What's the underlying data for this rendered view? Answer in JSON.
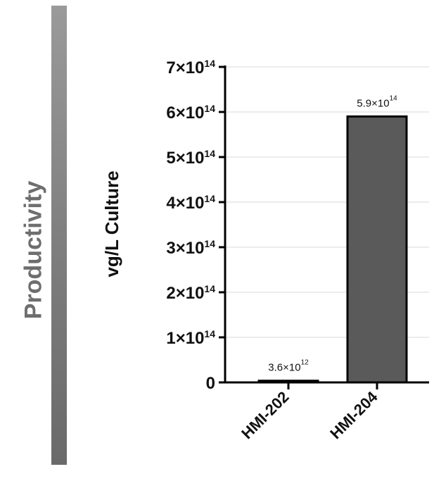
{
  "side_label": "Productivity",
  "chart_data": {
    "type": "bar",
    "categories": [
      "HMI-202",
      "HMI-204"
    ],
    "values": [
      3600000000000.0,
      590000000000000.0
    ],
    "data_labels": [
      {
        "base": "3.6×10",
        "exp": "12"
      },
      {
        "base": "5.9×10",
        "exp": "14"
      }
    ],
    "ylabel": "vg/L  Culture",
    "ylim": [
      0,
      700000000000000.0
    ],
    "yticks": [
      {
        "value": 0,
        "base": "0",
        "exp": ""
      },
      {
        "value": 100000000000000.0,
        "base": "1×10",
        "exp": "14"
      },
      {
        "value": 200000000000000.0,
        "base": "2×10",
        "exp": "14"
      },
      {
        "value": 300000000000000.0,
        "base": "3×10",
        "exp": "14"
      },
      {
        "value": 400000000000000.0,
        "base": "4×10",
        "exp": "14"
      },
      {
        "value": 500000000000000.0,
        "base": "5×10",
        "exp": "14"
      },
      {
        "value": 600000000000000.0,
        "base": "6×10",
        "exp": "14"
      },
      {
        "value": 700000000000000.0,
        "base": "7×10",
        "exp": "14"
      }
    ],
    "grid": true,
    "colors": {
      "bar": "#5a5a5a",
      "bar_edge": "#000000",
      "grid": "#d9d9d9",
      "axis": "#000000"
    }
  }
}
